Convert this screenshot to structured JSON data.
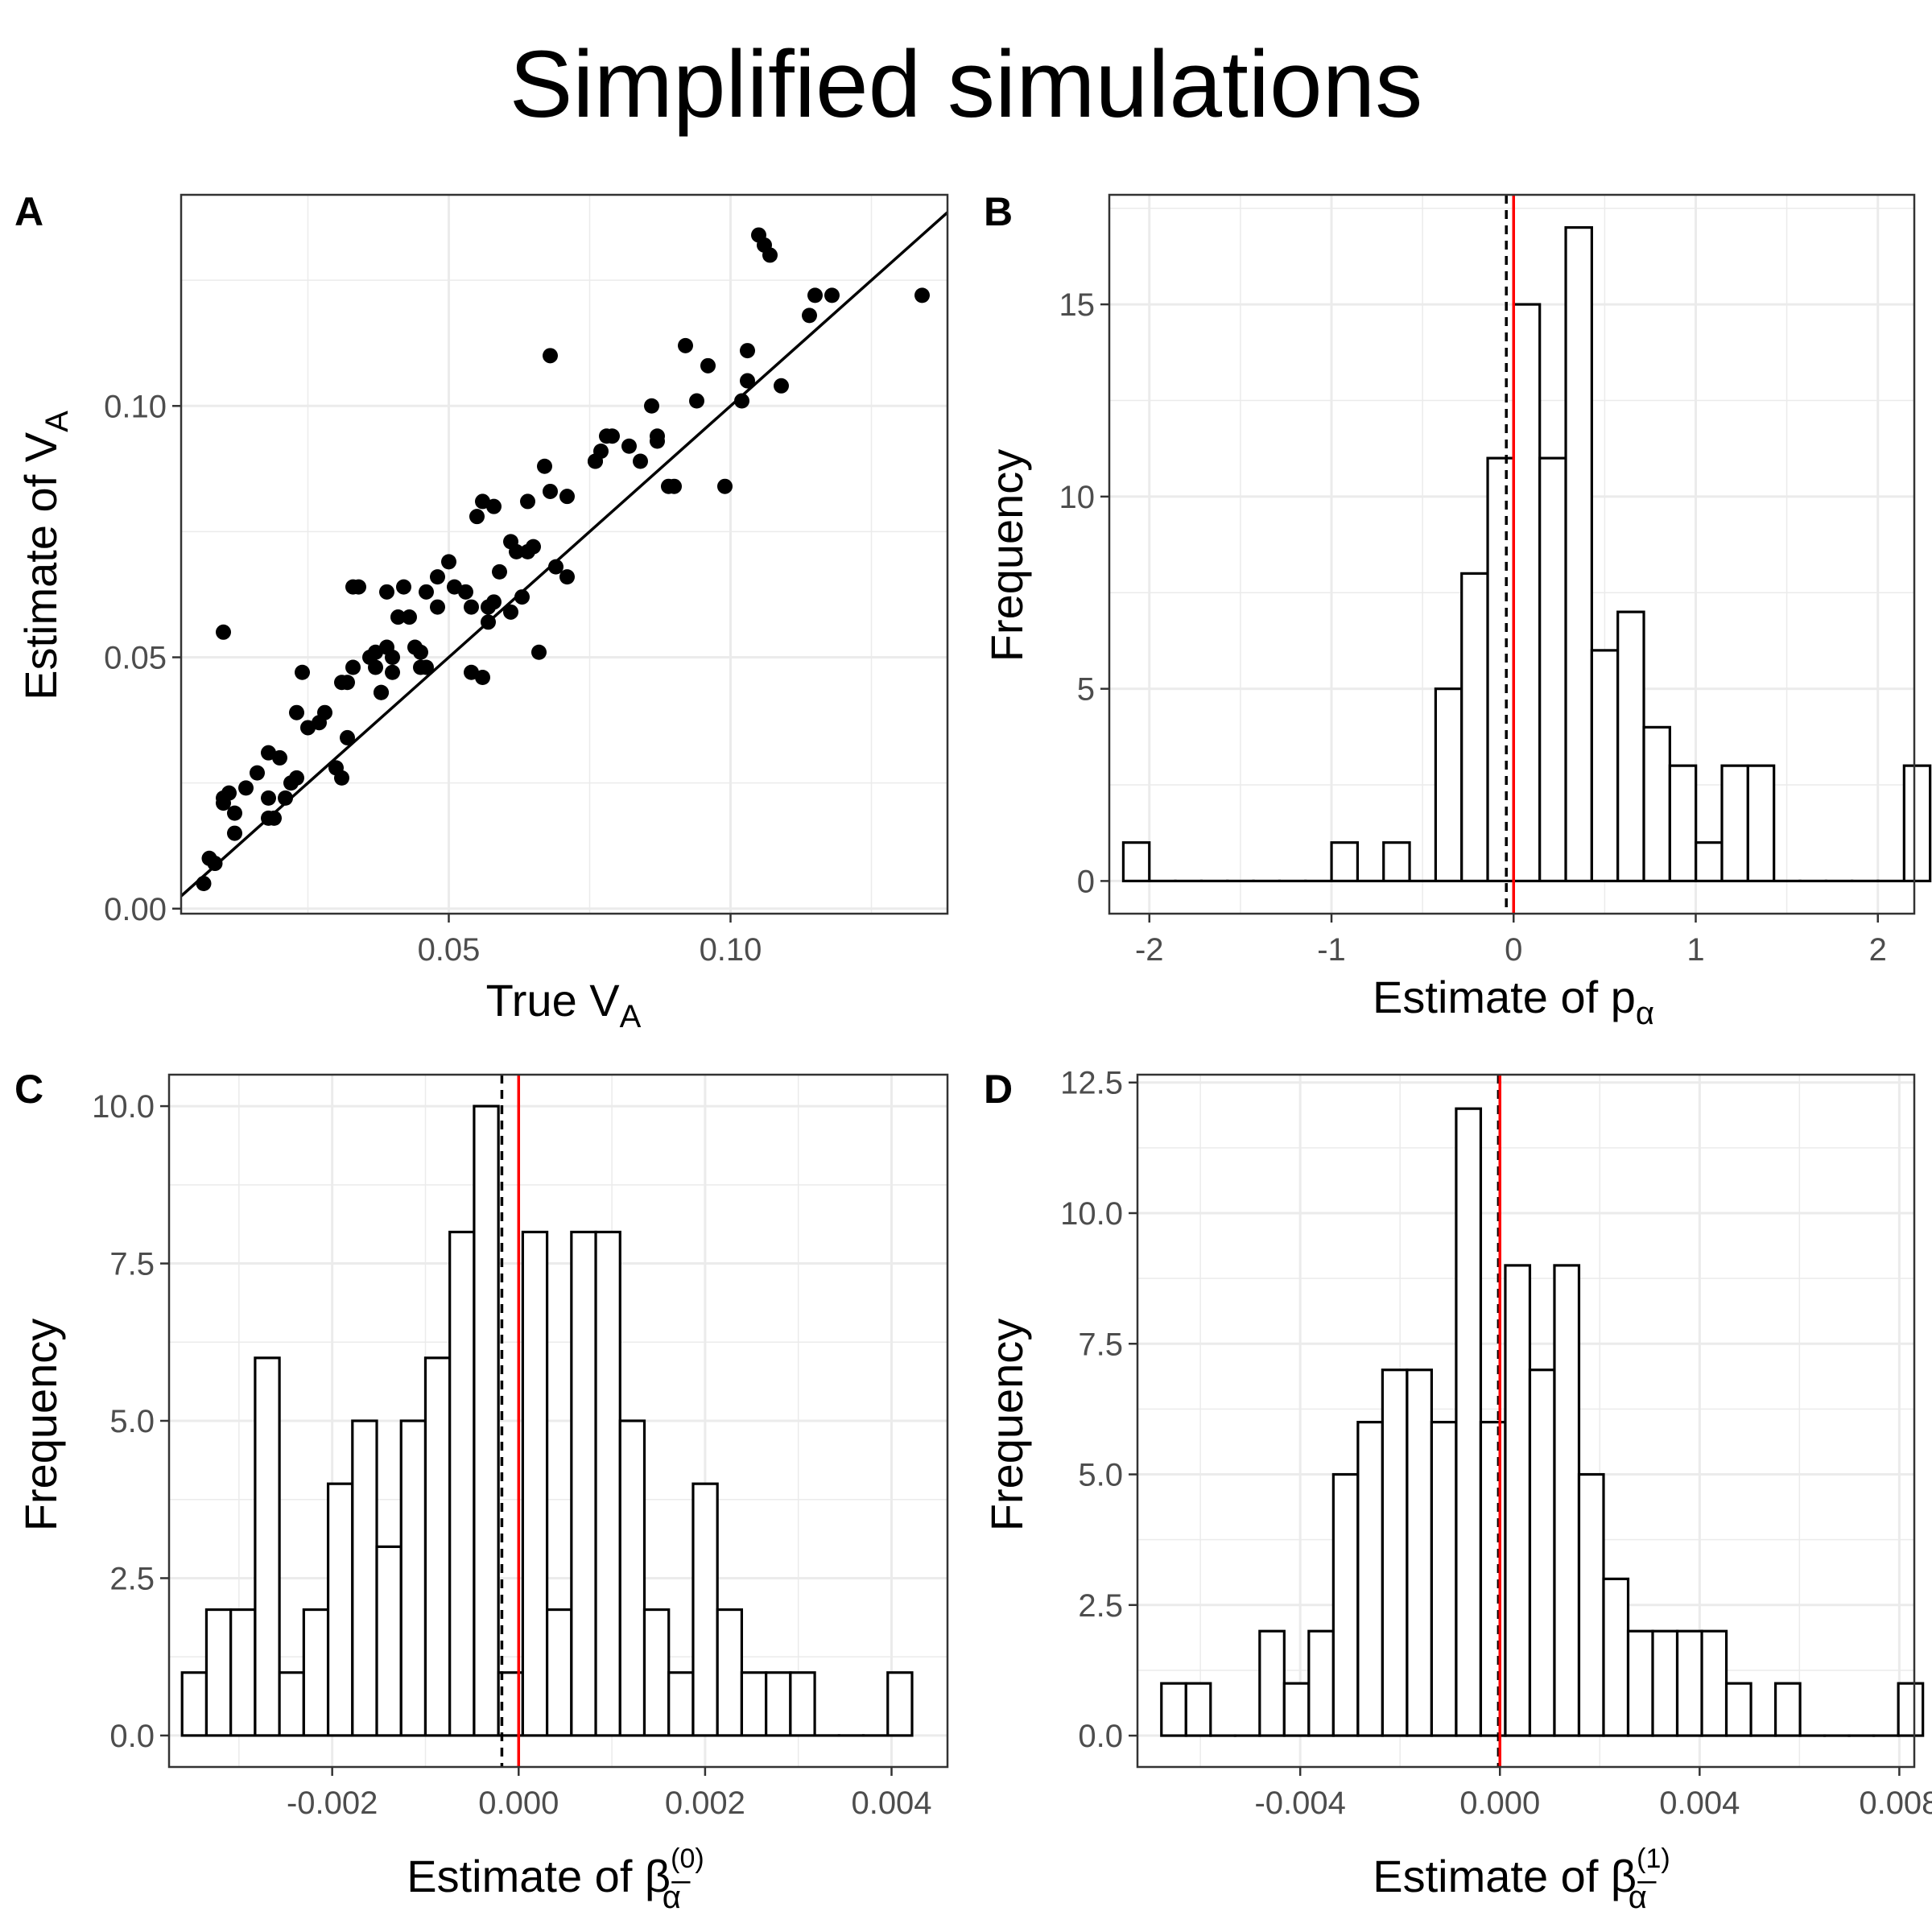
{
  "title": "Simplified simulations",
  "panels": [
    {
      "label": "A",
      "xlabel": {
        "main": "True V",
        "sub": "A"
      },
      "ylabel": {
        "main": "Estimate of V",
        "sub": "A"
      },
      "xticks": [
        "0.05",
        "0.10"
      ],
      "yticks": [
        "0.00",
        "0.05",
        "0.10"
      ]
    },
    {
      "label": "B",
      "xlabel": {
        "main": "Estimate of p",
        "sub": "α"
      },
      "ylabel": "Frequency",
      "xticks": [
        "-2",
        "-1",
        "0",
        "1",
        "2"
      ],
      "yticks": [
        "0",
        "5",
        "10",
        "15"
      ]
    },
    {
      "label": "C",
      "xlabel": {
        "main": "Estimate of β",
        "sup": "(0)",
        "sub": "α̅"
      },
      "ylabel": "Frequency",
      "xticks": [
        "-0.002",
        "0.000",
        "0.002",
        "0.004"
      ],
      "yticks": [
        "0.0",
        "2.5",
        "5.0",
        "7.5",
        "10.0"
      ]
    },
    {
      "label": "D",
      "xlabel": {
        "main": "Estimate of β",
        "sup": "(1)",
        "sub": "α̅"
      },
      "ylabel": "Frequency",
      "xticks": [
        "-0.004",
        "0.000",
        "0.004",
        "0.008"
      ],
      "yticks": [
        "0.0",
        "2.5",
        "5.0",
        "7.5",
        "10.0",
        "12.5"
      ]
    }
  ],
  "colors": {
    "reference_line": "#ff0000",
    "mean_line": "#000000",
    "bar_fill": "#ffffff",
    "bar_stroke": "#000000",
    "points": "#000000",
    "grid": "#ebebeb"
  },
  "chart_data": [
    {
      "panel": "A",
      "type": "scatter",
      "xlim": [
        0.0025,
        0.1385
      ],
      "ylim": [
        -0.001,
        0.142
      ],
      "grid": true,
      "identity_line": {
        "slope": 1,
        "intercept": 0
      },
      "x": [
        0.0065,
        0.0075,
        0.0085,
        0.01,
        0.01,
        0.01,
        0.011,
        0.012,
        0.012,
        0.014,
        0.016,
        0.018,
        0.018,
        0.018,
        0.019,
        0.02,
        0.021,
        0.022,
        0.023,
        0.023,
        0.024,
        0.025,
        0.027,
        0.028,
        0.03,
        0.031,
        0.031,
        0.032,
        0.032,
        0.033,
        0.033,
        0.034,
        0.036,
        0.037,
        0.037,
        0.038,
        0.038,
        0.039,
        0.039,
        0.04,
        0.04,
        0.041,
        0.042,
        0.043,
        0.044,
        0.045,
        0.045,
        0.046,
        0.046,
        0.048,
        0.048,
        0.05,
        0.051,
        0.053,
        0.054,
        0.054,
        0.055,
        0.056,
        0.056,
        0.057,
        0.057,
        0.058,
        0.058,
        0.059,
        0.061,
        0.061,
        0.062,
        0.063,
        0.064,
        0.064,
        0.065,
        0.066,
        0.067,
        0.068,
        0.068,
        0.069,
        0.071,
        0.071,
        0.076,
        0.076,
        0.077,
        0.078,
        0.079,
        0.082,
        0.084,
        0.086,
        0.087,
        0.087,
        0.089,
        0.09,
        0.092,
        0.094,
        0.096,
        0.099,
        0.102,
        0.103,
        0.103,
        0.105,
        0.106,
        0.107,
        0.109,
        0.114,
        0.115,
        0.118,
        0.134
      ],
      "y": [
        0.005,
        0.01,
        0.009,
        0.021,
        0.022,
        0.055,
        0.023,
        0.015,
        0.019,
        0.024,
        0.027,
        0.018,
        0.022,
        0.031,
        0.018,
        0.03,
        0.022,
        0.025,
        0.026,
        0.039,
        0.047,
        0.036,
        0.037,
        0.039,
        0.028,
        0.026,
        0.045,
        0.045,
        0.034,
        0.048,
        0.064,
        0.064,
        0.05,
        0.048,
        0.051,
        0.043,
        0.043,
        0.052,
        0.063,
        0.05,
        0.047,
        0.058,
        0.064,
        0.058,
        0.052,
        0.051,
        0.048,
        0.063,
        0.048,
        0.06,
        0.066,
        0.069,
        0.064,
        0.063,
        0.06,
        0.047,
        0.078,
        0.081,
        0.046,
        0.06,
        0.057,
        0.08,
        0.061,
        0.067,
        0.059,
        0.073,
        0.071,
        0.062,
        0.081,
        0.071,
        0.072,
        0.051,
        0.088,
        0.11,
        0.083,
        0.068,
        0.066,
        0.082,
        0.089,
        0.089,
        0.091,
        0.094,
        0.094,
        0.092,
        0.089,
        0.1,
        0.094,
        0.093,
        0.084,
        0.084,
        0.112,
        0.101,
        0.108,
        0.084,
        0.101,
        0.111,
        0.105,
        0.134,
        0.132,
        0.13,
        0.104,
        0.118,
        0.122,
        0.122,
        0.122
      ]
    },
    {
      "panel": "B",
      "type": "bar",
      "xlim": [
        -2.22,
        2.2
      ],
      "ylim": [
        -0.85,
        17.85
      ],
      "bin_width": 0.1429,
      "bin_start": -2.143,
      "counts": [
        1,
        0,
        0,
        0,
        0,
        0,
        0,
        0,
        1,
        0,
        1,
        0,
        5,
        8,
        11,
        15,
        11,
        17,
        6,
        7,
        4,
        3,
        1,
        3,
        3,
        0,
        0,
        0,
        0,
        0,
        3
      ],
      "reference_line": 0,
      "mean_line": -0.04,
      "grid": true
    },
    {
      "panel": "C",
      "type": "bar",
      "xlim": [
        -0.00375,
        0.0046
      ],
      "ylim": [
        -0.5,
        10.5
      ],
      "bin_width": 0.000261,
      "bin_start": -0.00361,
      "counts": [
        1,
        2,
        2,
        6,
        1,
        2,
        4,
        5,
        3,
        5,
        6,
        8,
        10,
        1,
        8,
        2,
        8,
        8,
        5,
        2,
        1,
        4,
        2,
        1,
        1,
        1,
        0,
        0,
        0,
        1
      ],
      "reference_line": 0,
      "mean_line": -0.00018,
      "grid": true
    },
    {
      "panel": "D",
      "type": "bar",
      "xlim": [
        -0.00726,
        0.0083
      ],
      "ylim": [
        -0.6,
        12.65
      ],
      "bin_width": 0.000492,
      "bin_start": -0.00678,
      "counts": [
        1,
        1,
        0,
        0,
        2,
        1,
        2,
        5,
        6,
        7,
        7,
        6,
        12,
        6,
        9,
        7,
        9,
        5,
        3,
        2,
        2,
        2,
        2,
        1,
        0,
        1,
        0,
        0,
        0,
        0,
        1
      ],
      "reference_line": 0,
      "mean_line": -3e-05,
      "grid": true
    }
  ]
}
